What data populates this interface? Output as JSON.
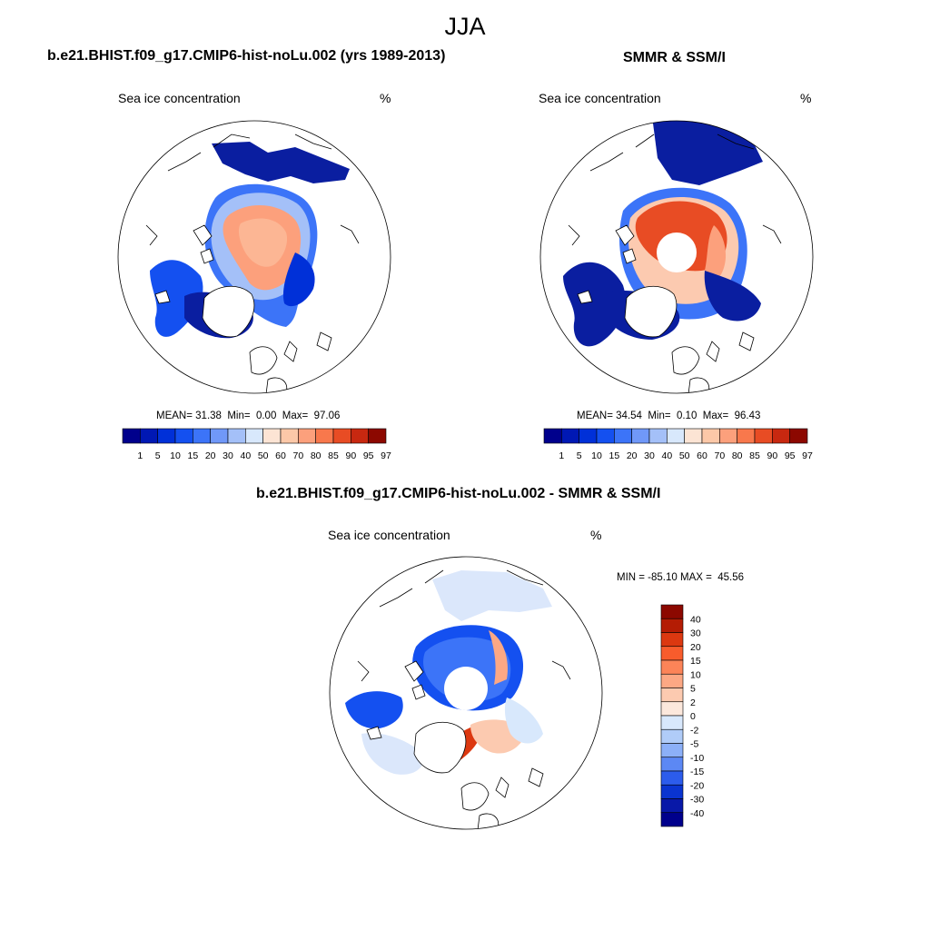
{
  "title": "JJA",
  "panels": [
    {
      "title": "b.e21.BHIST.f09_g17.CMIP6-hist-noLu.002 (yrs 1989-2013)",
      "variable": "Sea ice concentration",
      "units": "%",
      "stats": {
        "mean": "31.38",
        "min": "0.00",
        "max": "97.06"
      },
      "stats_labels": {
        "mean": "MEAN=",
        "min": "Min=",
        "max": "Max="
      }
    },
    {
      "title": "SMMR & SSM/I",
      "variable": "Sea ice concentration",
      "units": "%",
      "stats": {
        "mean": "34.54",
        "min": "0.10",
        "max": "96.43"
      },
      "stats_labels": {
        "mean": "MEAN=",
        "min": "Min=",
        "max": "Max="
      }
    },
    {
      "title": "b.e21.BHIST.f09_g17.CMIP6-hist-noLu.002 - SMMR & SSM/I",
      "variable": "Sea ice concentration",
      "units": "%",
      "minmax_text": "MIN = -85.10 MAX =  45.56"
    }
  ],
  "colorbar_horizontal": {
    "ticks": [
      "1",
      "5",
      "10",
      "15",
      "20",
      "30",
      "40",
      "50",
      "60",
      "70",
      "80",
      "85",
      "90",
      "95",
      "97"
    ],
    "colors": [
      "#00008c",
      "#0018b4",
      "#0030d8",
      "#1450f0",
      "#3c74f8",
      "#7098f8",
      "#a4c0f8",
      "#d8e8fc",
      "#fce4d4",
      "#fcc8a8",
      "#fca07c",
      "#f8784c",
      "#e84c24",
      "#c82810",
      "#8c0800"
    ]
  },
  "colorbar_vertical": {
    "ticks": [
      "40",
      "30",
      "20",
      "15",
      "10",
      "5",
      "2",
      "0",
      "-2",
      "-5",
      "-10",
      "-15",
      "-20",
      "-30",
      "-40"
    ],
    "colors": [
      "#8c0800",
      "#b41c04",
      "#dc3810",
      "#f85c2c",
      "#fc8458",
      "#fca884",
      "#fccab0",
      "#fce8dc",
      "#d8e8fc",
      "#b0ccf8",
      "#8cb0f8",
      "#5c88f4",
      "#2c5cec",
      "#0a34d0",
      "#0818a8",
      "#00008c"
    ]
  },
  "field_colors": {
    "land_outline": "#000000",
    "deep_blue": "#0a1ea0",
    "mid_blue": "#3c74f8",
    "light_blue": "#a4c0f8",
    "salmon": "#fca07c",
    "red": "#e84c24",
    "diff_pale": "#dbe7fb"
  }
}
